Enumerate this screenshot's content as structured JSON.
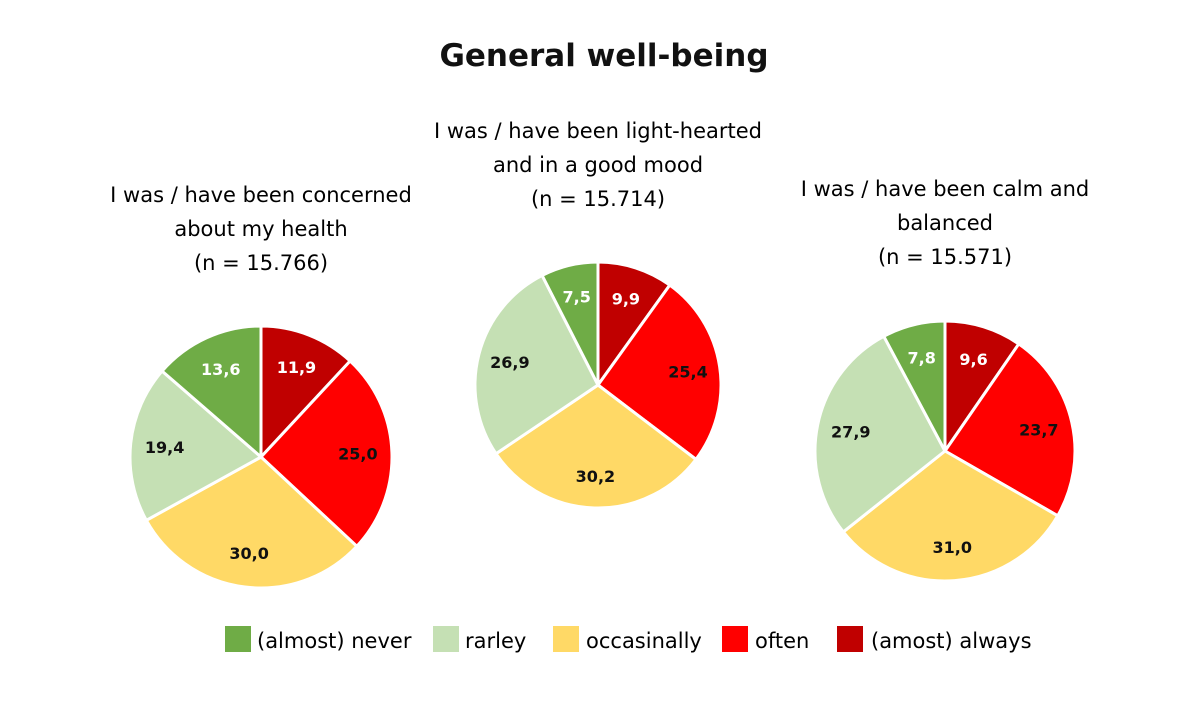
{
  "title": "General well-being",
  "legend": [
    {
      "label": "(almost) never",
      "color": "#6fac46"
    },
    {
      "label": "rarley",
      "color": "#c5e0b4"
    },
    {
      "label": "occasinally",
      "color": "#ffd966"
    },
    {
      "label": "often",
      "color": "#ff0000"
    },
    {
      "label": "(amost) always",
      "color": "#c00000"
    }
  ],
  "chart_data": [
    {
      "type": "pie",
      "title_lines": [
        "I was / have been concerned",
        "about my health",
        "(n = 15.766)"
      ],
      "categories": [
        "(amost) always",
        "often",
        "occasinally",
        "rarley",
        "(almost) never"
      ],
      "values": [
        11.9,
        25.0,
        30.0,
        19.4,
        13.6
      ],
      "labels": [
        "11,9",
        "25,0",
        "30,0",
        "19,4",
        "13,6"
      ],
      "label_colors": [
        "#ffffff",
        "#111111",
        "#111111",
        "#111111",
        "#ffffff"
      ],
      "colors": [
        "#c00000",
        "#ff0000",
        "#ffd966",
        "#c5e0b4",
        "#6fac46"
      ]
    },
    {
      "type": "pie",
      "title_lines": [
        "I was / have been light-hearted",
        "and in a good mood",
        "(n = 15.714)"
      ],
      "categories": [
        "(amost) always",
        "often",
        "occasinally",
        "rarley",
        "(almost) never"
      ],
      "values": [
        9.9,
        25.4,
        30.2,
        26.9,
        7.5
      ],
      "labels": [
        "9,9",
        "25,4",
        "30,2",
        "26,9",
        "7,5"
      ],
      "label_colors": [
        "#ffffff",
        "#111111",
        "#111111",
        "#111111",
        "#ffffff"
      ],
      "colors": [
        "#c00000",
        "#ff0000",
        "#ffd966",
        "#c5e0b4",
        "#6fac46"
      ]
    },
    {
      "type": "pie",
      "title_lines": [
        "I was / have been calm and",
        "balanced",
        "(n = 15.571)"
      ],
      "categories": [
        "(amost) always",
        "often",
        "occasinally",
        "rarley",
        "(almost) never"
      ],
      "values": [
        9.6,
        23.7,
        31.0,
        27.9,
        7.8
      ],
      "labels": [
        "9,6",
        "23,7",
        "31,0",
        "27,9",
        "7,8"
      ],
      "label_colors": [
        "#ffffff",
        "#111111",
        "#111111",
        "#111111",
        "#ffffff"
      ],
      "colors": [
        "#c00000",
        "#ff0000",
        "#ffd966",
        "#c5e0b4",
        "#6fac46"
      ]
    }
  ]
}
